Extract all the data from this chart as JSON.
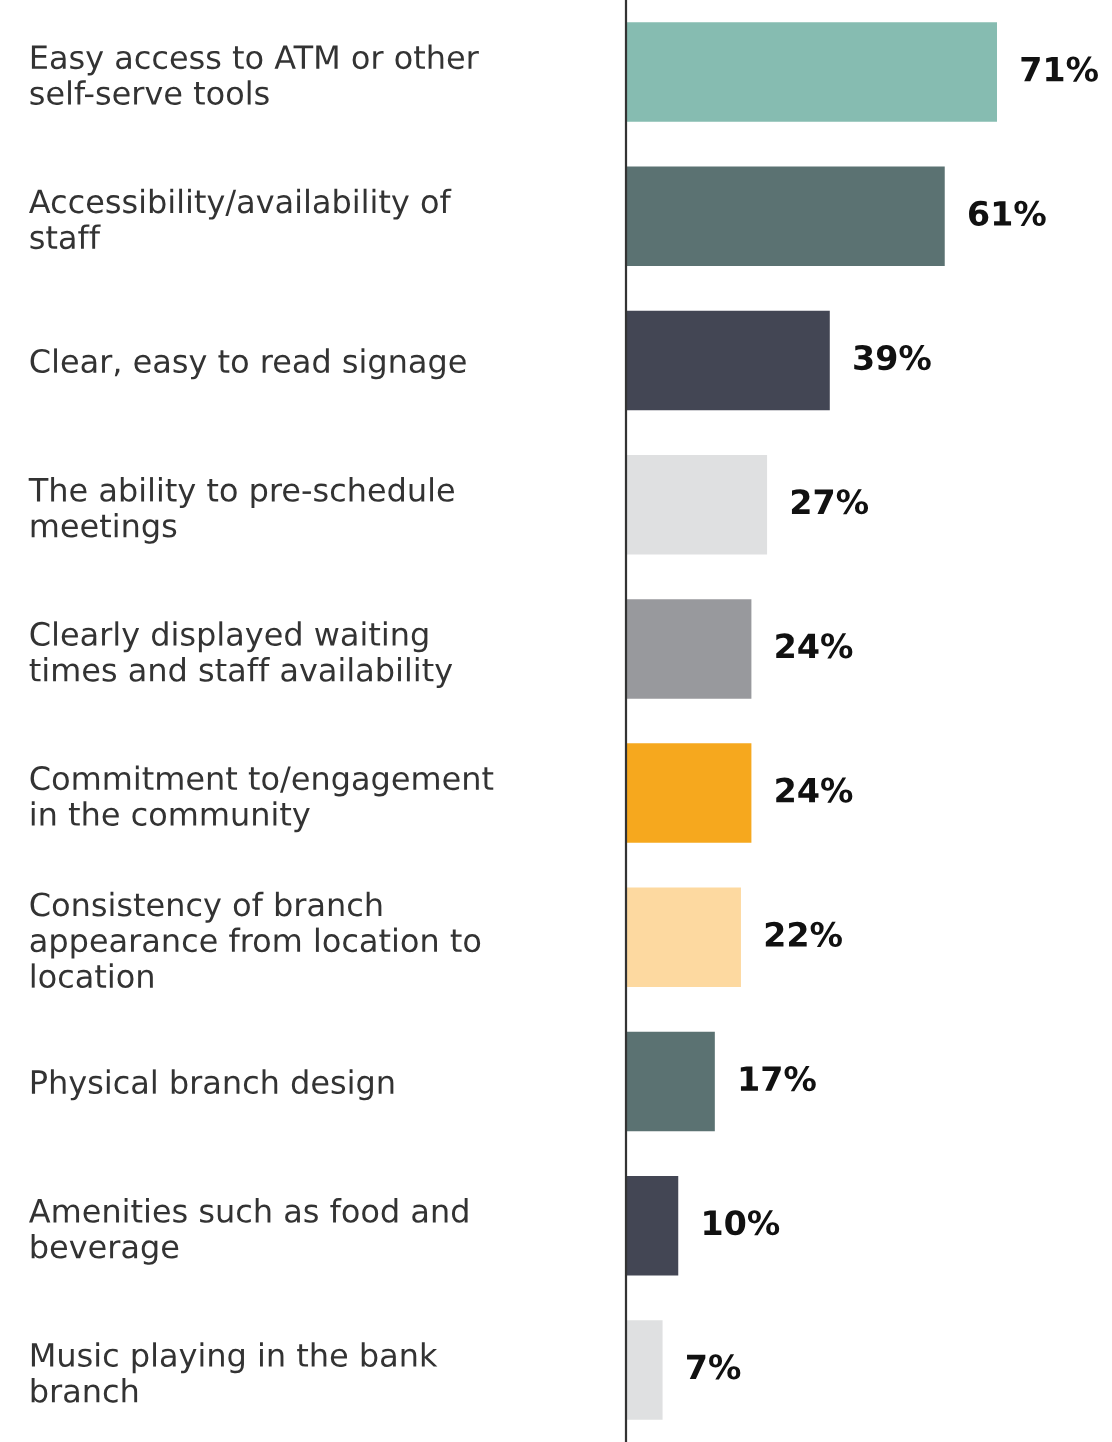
{
  "chart_data": {
    "type": "bar",
    "orientation": "horizontal",
    "value_labels": [
      "71%",
      "61%",
      "39%",
      "27%",
      "24%",
      "24%",
      "22%",
      "17%",
      "10%",
      "7%"
    ],
    "categories": [
      "Easy access to ATM or other\nself-serve tools",
      "Accessibility/availability of\nstaff",
      "Clear, easy to read signage",
      "The ability to pre-schedule\nmeetings",
      "Clearly displayed waiting\ntimes and staff availability",
      "Commitment to/engagement\nin the community",
      "Consistency of branch\nappearance from location to\nlocation",
      "Physical branch design",
      "Amenities such as food and\nbeverage",
      "Music playing in the bank\nbranch"
    ],
    "values": [
      71,
      61,
      39,
      27,
      24,
      24,
      22,
      17,
      10,
      7
    ],
    "colors": [
      "#86bcb1",
      "#5b7272",
      "#434654",
      "#dfe0e1",
      "#98999d",
      "#f6a81e",
      "#fdd9a0",
      "#5b7272",
      "#434654",
      "#dfe0e1"
    ]
  }
}
